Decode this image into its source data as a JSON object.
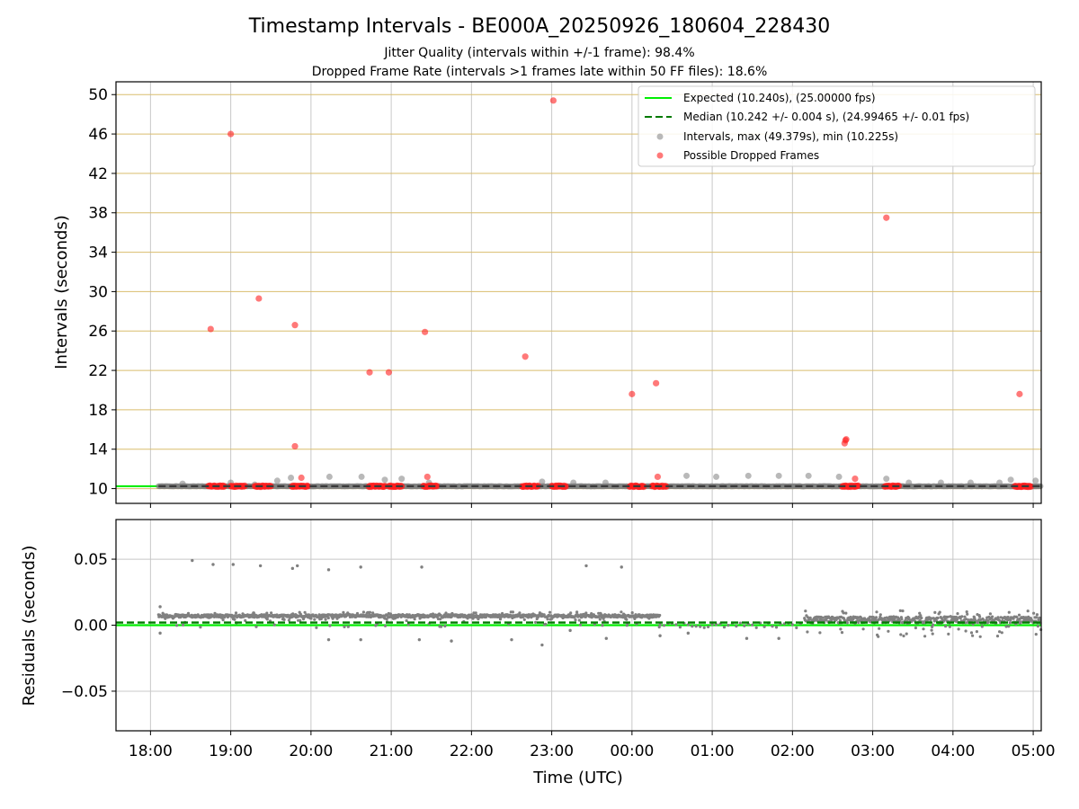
{
  "chart_data": {
    "type": "scatter",
    "title": "Timestamp Intervals - BE000A_20250926_180604_228430",
    "subtitle_lines": [
      "Jitter Quality (intervals within +/-1 frame): 98.4%",
      "Dropped Frame Rate (intervals >1 frames late within 50 FF files): 18.6%"
    ],
    "xlabel": "Time (UTC)",
    "x_ticks": [
      "18:00",
      "19:00",
      "20:00",
      "21:00",
      "22:00",
      "23:00",
      "00:00",
      "01:00",
      "02:00",
      "03:00",
      "04:00",
      "05:00"
    ],
    "x_range_hours": [
      17.57,
      29.1
    ],
    "grid": true,
    "legend_location": "top-right",
    "colors": {
      "expected": "#00ee00",
      "median": "#007a00",
      "intervals": "#808080",
      "dropped": "#ff2020",
      "hgrid": "#d9bd6d",
      "vgrid": "#c8c8c8"
    },
    "top": {
      "ylabel": "Intervals (seconds)",
      "yticks": [
        10,
        14,
        18,
        22,
        26,
        30,
        34,
        38,
        42,
        46,
        50
      ],
      "ylim": [
        8.5,
        51.3
      ],
      "expected_value": 10.24,
      "median_value": 10.242,
      "legend": [
        {
          "label": "Expected (10.240s), (25.00000 fps)",
          "kind": "line-solid"
        },
        {
          "label": "Median (10.242 +/- 0.004 s), (24.99465 +/- 0.01 fps)",
          "kind": "line-dashed"
        },
        {
          "label": "Intervals, max (49.379s), min (10.225s)",
          "kind": "marker-grey"
        },
        {
          "label": "Possible Dropped Frames",
          "kind": "marker-red"
        }
      ],
      "dropped_frames": [
        {
          "t": 18.75,
          "v": 26.2
        },
        {
          "t": 19.0,
          "v": 46.0
        },
        {
          "t": 19.35,
          "v": 29.3
        },
        {
          "t": 19.8,
          "v": 26.6
        },
        {
          "t": 19.8,
          "v": 14.3
        },
        {
          "t": 19.88,
          "v": 11.1
        },
        {
          "t": 20.73,
          "v": 21.8
        },
        {
          "t": 20.97,
          "v": 21.8
        },
        {
          "t": 21.42,
          "v": 25.9
        },
        {
          "t": 21.45,
          "v": 11.2
        },
        {
          "t": 22.67,
          "v": 23.4
        },
        {
          "t": 23.02,
          "v": 49.4
        },
        {
          "t": 24.0,
          "v": 19.6
        },
        {
          "t": 24.3,
          "v": 20.7
        },
        {
          "t": 24.32,
          "v": 11.2
        },
        {
          "t": 26.65,
          "v": 14.6
        },
        {
          "t": 26.66,
          "v": 14.9
        },
        {
          "t": 26.67,
          "v": 15.0
        },
        {
          "t": 26.78,
          "v": 11.0
        },
        {
          "t": 27.17,
          "v": 37.5
        },
        {
          "t": 28.83,
          "v": 19.6
        }
      ],
      "grey_outliers": [
        {
          "t": 18.4,
          "v": 10.5
        },
        {
          "t": 19.0,
          "v": 10.6
        },
        {
          "t": 19.3,
          "v": 10.4
        },
        {
          "t": 19.58,
          "v": 10.8
        },
        {
          "t": 19.75,
          "v": 11.1
        },
        {
          "t": 20.23,
          "v": 11.2
        },
        {
          "t": 20.63,
          "v": 11.2
        },
        {
          "t": 20.92,
          "v": 10.9
        },
        {
          "t": 21.13,
          "v": 11.0
        },
        {
          "t": 21.47,
          "v": 10.6
        },
        {
          "t": 22.88,
          "v": 10.7
        },
        {
          "t": 23.27,
          "v": 10.6
        },
        {
          "t": 23.67,
          "v": 10.6
        },
        {
          "t": 24.68,
          "v": 11.3
        },
        {
          "t": 25.05,
          "v": 11.2
        },
        {
          "t": 25.45,
          "v": 11.3
        },
        {
          "t": 25.83,
          "v": 11.3
        },
        {
          "t": 26.2,
          "v": 11.3
        },
        {
          "t": 26.58,
          "v": 11.2
        },
        {
          "t": 27.17,
          "v": 11.0
        },
        {
          "t": 27.45,
          "v": 10.6
        },
        {
          "t": 27.85,
          "v": 10.6
        },
        {
          "t": 28.22,
          "v": 10.6
        },
        {
          "t": 28.58,
          "v": 10.6
        },
        {
          "t": 28.72,
          "v": 10.9
        },
        {
          "t": 29.03,
          "v": 10.8
        }
      ],
      "dropped_clusters": [
        [
          18.72,
          18.92
        ],
        [
          19.0,
          19.18
        ],
        [
          19.3,
          19.5
        ],
        [
          19.76,
          19.96
        ],
        [
          20.72,
          20.92
        ],
        [
          20.97,
          21.13
        ],
        [
          21.4,
          21.57
        ],
        [
          22.63,
          22.83
        ],
        [
          23.0,
          23.18
        ],
        [
          23.97,
          24.15
        ],
        [
          24.25,
          24.43
        ],
        [
          26.62,
          26.82
        ],
        [
          27.15,
          27.33
        ],
        [
          28.77,
          28.97
        ]
      ],
      "interval_baseline": {
        "t_start": 18.1,
        "t_end": 29.1,
        "v": 10.24
      }
    },
    "bottom": {
      "ylabel": "Residuals (seconds)",
      "yticks": [
        0.05,
        0.0,
        -0.05
      ],
      "ytick_labels": [
        "0.05",
        "0.00",
        "−0.05"
      ],
      "ylim": [
        -0.08,
        0.08
      ],
      "expected_value": 0.0,
      "median_value": 0.002,
      "outliers": [
        {
          "t": 18.52,
          "v": 0.049
        },
        {
          "t": 18.78,
          "v": 0.046
        },
        {
          "t": 19.03,
          "v": 0.046
        },
        {
          "t": 19.37,
          "v": 0.045
        },
        {
          "t": 19.77,
          "v": 0.043
        },
        {
          "t": 19.83,
          "v": 0.045
        },
        {
          "t": 20.22,
          "v": 0.042
        },
        {
          "t": 20.62,
          "v": 0.044
        },
        {
          "t": 21.38,
          "v": 0.044
        },
        {
          "t": 23.43,
          "v": 0.045
        },
        {
          "t": 23.87,
          "v": 0.044
        },
        {
          "t": 18.12,
          "v": 0.014
        },
        {
          "t": 18.12,
          "v": -0.006
        },
        {
          "t": 20.22,
          "v": -0.011
        },
        {
          "t": 20.62,
          "v": -0.011
        },
        {
          "t": 21.35,
          "v": -0.011
        },
        {
          "t": 21.75,
          "v": -0.012
        },
        {
          "t": 22.5,
          "v": -0.011
        },
        {
          "t": 22.88,
          "v": -0.015
        },
        {
          "t": 23.23,
          "v": -0.004
        },
        {
          "t": 23.68,
          "v": -0.01
        },
        {
          "t": 24.35,
          "v": -0.008
        },
        {
          "t": 24.7,
          "v": -0.006
        },
        {
          "t": 25.43,
          "v": -0.01
        },
        {
          "t": 25.83,
          "v": -0.01
        }
      ],
      "bands": [
        {
          "t_start": 18.1,
          "t_end": 24.35,
          "v_center": 0.007,
          "spread": 0.003
        },
        {
          "t_start": 26.15,
          "t_end": 29.1,
          "v_center": 0.004,
          "spread": 0.007
        }
      ]
    }
  }
}
